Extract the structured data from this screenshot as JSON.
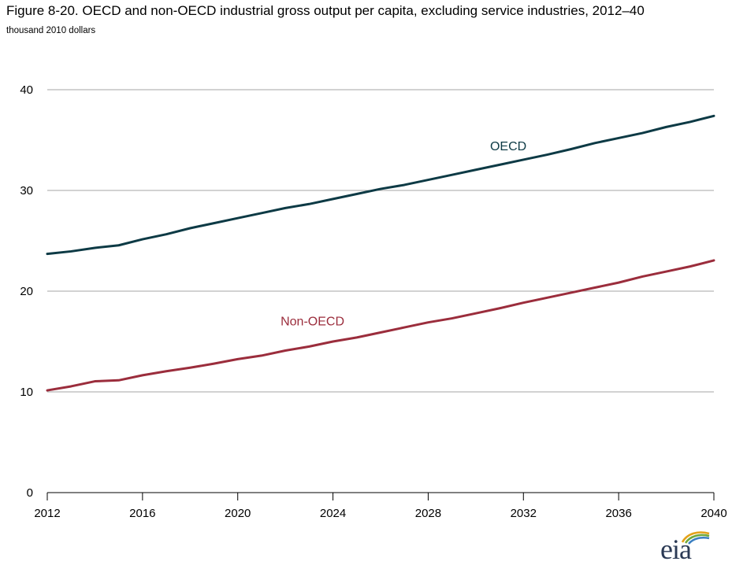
{
  "title": "Figure 8-20. OECD and non-OECD industrial gross output per capita, excluding service industries, 2012–40",
  "subtitle": "thousand 2010 dollars",
  "logo": {
    "text": "eia",
    "colors": [
      "#2b3a55",
      "#e3a21a",
      "#6fa83a",
      "#3a7fc1"
    ]
  },
  "chart_data": {
    "type": "line",
    "title": "Figure 8-20. OECD and non-OECD industrial gross output per capita, excluding service industries, 2012–40",
    "ylabel": "thousand 2010 dollars",
    "xlabel": "",
    "xlim": [
      2012,
      2040
    ],
    "ylim": [
      0,
      40
    ],
    "grid": true,
    "x_ticks": [
      "2012",
      "2016",
      "2020",
      "2024",
      "2028",
      "2032",
      "2036",
      "2040"
    ],
    "y_ticks": [
      "0",
      "10",
      "20",
      "30",
      "40"
    ],
    "x": [
      2012,
      2013,
      2014,
      2015,
      2016,
      2017,
      2018,
      2019,
      2020,
      2021,
      2022,
      2023,
      2024,
      2025,
      2026,
      2027,
      2028,
      2029,
      2030,
      2031,
      2032,
      2033,
      2034,
      2035,
      2036,
      2037,
      2038,
      2039,
      2040
    ],
    "series": [
      {
        "name": "OECD",
        "color": "#0d3a45",
        "values": [
          23.7,
          23.95,
          24.3,
          24.55,
          25.15,
          25.65,
          26.25,
          26.75,
          27.25,
          27.75,
          28.25,
          28.65,
          29.15,
          29.65,
          30.15,
          30.55,
          31.05,
          31.55,
          32.05,
          32.55,
          33.05,
          33.55,
          34.1,
          34.7,
          35.2,
          35.7,
          36.3,
          36.8,
          37.4
        ]
      },
      {
        "name": "Non-OECD",
        "color": "#9b2d3c",
        "values": [
          10.15,
          10.55,
          11.05,
          11.15,
          11.65,
          12.05,
          12.4,
          12.8,
          13.25,
          13.6,
          14.1,
          14.5,
          15.0,
          15.4,
          15.9,
          16.4,
          16.9,
          17.3,
          17.8,
          18.3,
          18.85,
          19.35,
          19.85,
          20.35,
          20.85,
          21.45,
          21.95,
          22.45,
          23.05
        ]
      }
    ]
  }
}
